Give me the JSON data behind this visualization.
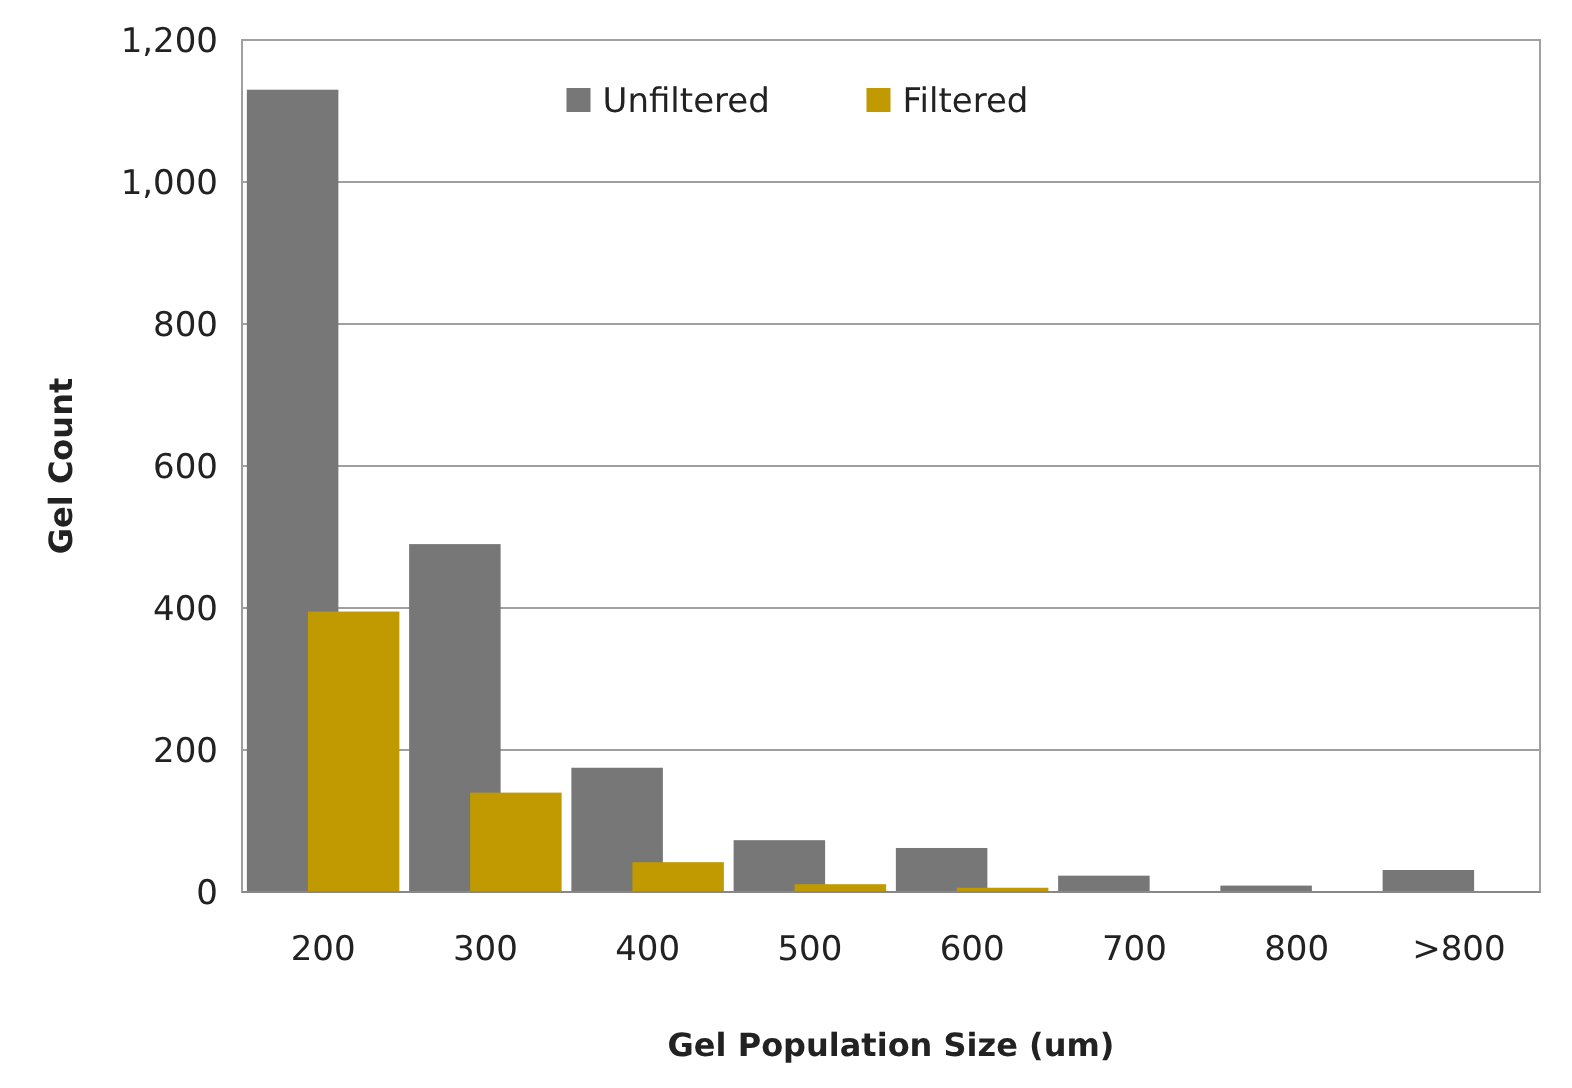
{
  "chart_data": {
    "type": "bar",
    "xlabel": "Gel Population Size (um)",
    "ylabel": "Gel Count",
    "categories": [
      "200",
      "300",
      "400",
      "500",
      "600",
      "700",
      "800",
      ">800"
    ],
    "series": [
      {
        "name": "Unfiltered",
        "color": "#777777",
        "values": [
          1130,
          490,
          175,
          73,
          62,
          23,
          9,
          31
        ]
      },
      {
        "name": "Filtered",
        "color": "#c09a00",
        "values": [
          395,
          140,
          42,
          11,
          6,
          0,
          0,
          0
        ]
      }
    ],
    "ylim": [
      0,
      1200
    ],
    "yticks": [
      {
        "value": 0,
        "label": "0"
      },
      {
        "value": 200,
        "label": "200"
      },
      {
        "value": 400,
        "label": "400"
      },
      {
        "value": 600,
        "label": "600"
      },
      {
        "value": 800,
        "label": "800"
      },
      {
        "value": 1000,
        "label": "1,000"
      },
      {
        "value": 1200,
        "label": "1,200"
      }
    ],
    "grid": "y",
    "legend": "top"
  }
}
